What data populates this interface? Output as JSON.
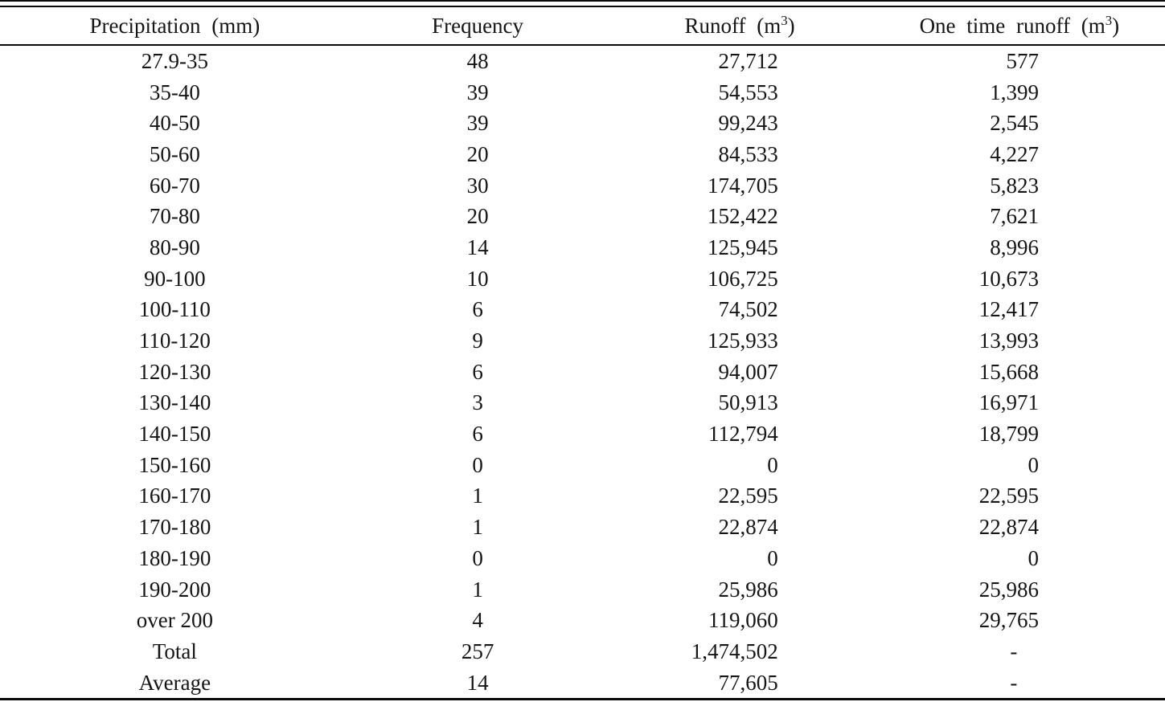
{
  "table": {
    "columns": [
      {
        "label": "Precipitation (mm)"
      },
      {
        "label": "Frequency"
      },
      {
        "label_pre": "Runoff (m",
        "label_sup": "3",
        "label_post": ")"
      },
      {
        "label_pre": "One time runoff (m",
        "label_sup": "3",
        "label_post": ")"
      }
    ],
    "rows": [
      [
        "27.9-35",
        "48",
        "27,712",
        "577"
      ],
      [
        "35-40",
        "39",
        "54,553",
        "1,399"
      ],
      [
        "40-50",
        "39",
        "99,243",
        "2,545"
      ],
      [
        "50-60",
        "20",
        "84,533",
        "4,227"
      ],
      [
        "60-70",
        "30",
        "174,705",
        "5,823"
      ],
      [
        "70-80",
        "20",
        "152,422",
        "7,621"
      ],
      [
        "80-90",
        "14",
        "125,945",
        "8,996"
      ],
      [
        "90-100",
        "10",
        "106,725",
        "10,673"
      ],
      [
        "100-110",
        "6",
        "74,502",
        "12,417"
      ],
      [
        "110-120",
        "9",
        "125,933",
        "13,993"
      ],
      [
        "120-130",
        "6",
        "94,007",
        "15,668"
      ],
      [
        "130-140",
        "3",
        "50,913",
        "16,971"
      ],
      [
        "140-150",
        "6",
        "112,794",
        "18,799"
      ],
      [
        "150-160",
        "0",
        "0",
        "0"
      ],
      [
        "160-170",
        "1",
        "22,595",
        "22,595"
      ],
      [
        "170-180",
        "1",
        "22,874",
        "22,874"
      ],
      [
        "180-190",
        "0",
        "0",
        "0"
      ],
      [
        "190-200",
        "1",
        "25,986",
        "25,986"
      ],
      [
        "over 200",
        "4",
        "119,060",
        "29,765"
      ],
      [
        "Total",
        "257",
        "1,474,502",
        "-"
      ],
      [
        "Average",
        "14",
        "77,605",
        "-"
      ]
    ]
  }
}
